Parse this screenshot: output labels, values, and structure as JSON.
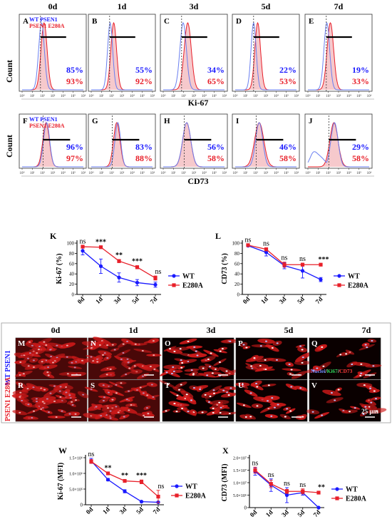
{
  "flow_rows": [
    {
      "ylabel": "Count",
      "xlabel": "Ki-67",
      "days": [
        "0d",
        "1d",
        "3d",
        "5d",
        "7d"
      ],
      "panels": [
        {
          "letter": "A",
          "wt": "85%",
          "e280a": "93%",
          "legend": [
            "WT PSEN1",
            "PSEN1 E280A"
          ]
        },
        {
          "letter": "B",
          "wt": "55%",
          "e280a": "92%"
        },
        {
          "letter": "C",
          "wt": "34%",
          "e280a": "65%"
        },
        {
          "letter": "D",
          "wt": "22%",
          "e280a": "53%"
        },
        {
          "letter": "E",
          "wt": "19%",
          "e280a": "33%"
        }
      ],
      "ticks": [
        "10⁰",
        "10¹",
        "10²",
        "10³",
        "10⁴",
        "10⁵",
        "10⁶"
      ]
    },
    {
      "ylabel": "Count",
      "xlabel": "CD73",
      "panels": [
        {
          "letter": "F",
          "wt": "96%",
          "e280a": "97%",
          "legend": [
            "WT PSEN1",
            "PSEN1 E280A"
          ]
        },
        {
          "letter": "G",
          "wt": "83%",
          "e280a": "88%"
        },
        {
          "letter": "H",
          "wt": "56%",
          "e280a": "58%"
        },
        {
          "letter": "I",
          "wt": "46%",
          "e280a": "58%"
        },
        {
          "letter": "J",
          "wt": "29%",
          "e280a": "58%"
        }
      ],
      "ticks": [
        "10⁰",
        "10¹",
        "10²",
        "10³",
        "10⁴",
        "10⁵",
        "10⁶"
      ]
    }
  ],
  "chart_data": [
    {
      "panel": "K",
      "type": "line",
      "ylabel": "Ki-67 (%)",
      "categories": [
        "0d",
        "1d",
        "3d",
        "5d",
        "7d"
      ],
      "yticks": [
        "0",
        "20",
        "40",
        "60",
        "80",
        "100"
      ],
      "ylim": [
        0,
        100
      ],
      "series": [
        {
          "name": "WT",
          "color": "#1a1aff",
          "marker": "circle",
          "values": [
            85,
            55,
            33,
            23,
            19
          ],
          "err": [
            8,
            14,
            9,
            6,
            5
          ]
        },
        {
          "name": "E280A",
          "color": "#e8202a",
          "marker": "square",
          "values": [
            93,
            92,
            65,
            53,
            32
          ],
          "err": [
            2,
            2,
            3,
            3,
            4
          ]
        }
      ],
      "significance": [
        "ns",
        "***",
        "**",
        "***",
        "ns"
      ],
      "legend_position": "right"
    },
    {
      "panel": "L",
      "type": "line",
      "ylabel": "CD73 (%)",
      "categories": [
        "0d",
        "1d",
        "3d",
        "5d",
        "7d"
      ],
      "yticks": [
        "0",
        "20",
        "40",
        "60",
        "80",
        "100"
      ],
      "ylim": [
        0,
        100
      ],
      "series": [
        {
          "name": "WT",
          "color": "#1a1aff",
          "marker": "circle",
          "values": [
            95,
            82,
            56,
            46,
            29
          ],
          "err": [
            2,
            7,
            6,
            14,
            4
          ]
        },
        {
          "name": "E280A",
          "color": "#e8202a",
          "marker": "square",
          "values": [
            96,
            88,
            58,
            58,
            58
          ],
          "err": [
            2,
            3,
            5,
            3,
            2
          ]
        }
      ],
      "significance": [
        "ns",
        "ns",
        "ns",
        "ns",
        "***"
      ],
      "legend_position": "right"
    },
    {
      "panel": "W",
      "type": "line",
      "ylabel": "Ki-67 (MFI)",
      "categories": [
        "0d",
        "1d",
        "3d",
        "5d",
        "7d"
      ],
      "yticks": [
        "0",
        "5.0×10⁵",
        "1.0×10⁶",
        "1.5×10⁶"
      ],
      "ylim": [
        0,
        1500000
      ],
      "series": [
        {
          "name": "WT",
          "color": "#1a1aff",
          "marker": "circle",
          "values": [
            1400000,
            800000,
            430000,
            100000,
            80000
          ],
          "err": [
            80000,
            40000,
            50000,
            20000,
            15000
          ]
        },
        {
          "name": "E280A",
          "color": "#e8202a",
          "marker": "square",
          "values": [
            1380000,
            1000000,
            760000,
            730000,
            260000
          ],
          "err": [
            60000,
            30000,
            40000,
            60000,
            200000
          ]
        }
      ],
      "significance": [
        "ns",
        "**",
        "**",
        "***",
        "ns"
      ],
      "legend_position": "right"
    },
    {
      "panel": "X",
      "type": "line",
      "ylabel": "CD73 (MFI)",
      "categories": [
        "0d",
        "1d",
        "3d",
        "5d",
        "7d"
      ],
      "yticks": [
        "0",
        "5.0×10⁶",
        "1.0×10⁷",
        "1.5×10⁷",
        "2.0×10⁷"
      ],
      "ylim": [
        0,
        20000000
      ],
      "series": [
        {
          "name": "WT",
          "color": "#1a1aff",
          "marker": "circle",
          "values": [
            14500000,
            9000000,
            5000000,
            6000000,
            0
          ],
          "err": [
            1500000,
            2500000,
            3000000,
            1000000,
            0
          ]
        },
        {
          "name": "E280A",
          "color": "#e8202a",
          "marker": "square",
          "values": [
            15000000,
            9500000,
            6500000,
            6500000,
            6000000
          ],
          "err": [
            1200000,
            1500000,
            800000,
            1000000,
            500000
          ]
        }
      ],
      "significance": [
        "ns",
        "ns",
        "ns",
        "ns",
        "**"
      ],
      "legend_position": "right"
    }
  ],
  "micro": {
    "days": [
      "0d",
      "1d",
      "3d",
      "5d",
      "7d"
    ],
    "row_labels": [
      "WT PSEN1",
      "PSEN1 E280A"
    ],
    "row1_letters": [
      "M",
      "N",
      "O",
      "P",
      "Q"
    ],
    "row2_letters": [
      "R",
      "S",
      "T",
      "U",
      "V"
    ],
    "stain_legend": {
      "nuclei": "Nuclei",
      "ki67": "Ki67",
      "cd73": "CD73",
      "sep": "/"
    },
    "scale_bar": "25 μm",
    "colors": {
      "nuclei": "#6f8cff",
      "ki67": "#2fd05a",
      "cd73": "#ff3b3b"
    }
  }
}
